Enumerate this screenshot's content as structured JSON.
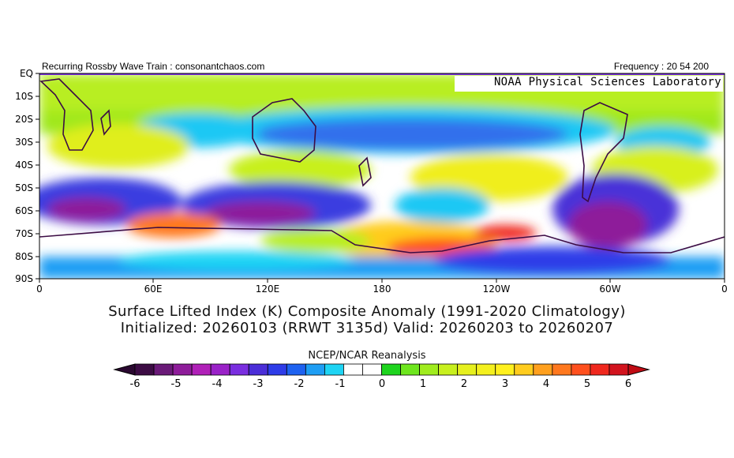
{
  "header": {
    "left_text": "Recurring Rossby Wave Train : consonantchaos.com",
    "right_text": "Frequency : 20 54 200",
    "lab_label": "NOAA Physical Sciences Laboratory"
  },
  "map": {
    "y_ticks": [
      "EQ",
      "10S",
      "20S",
      "30S",
      "40S",
      "50S",
      "60S",
      "70S",
      "80S",
      "90S"
    ],
    "x_ticks": [
      "0",
      "60E",
      "120E",
      "180",
      "120W",
      "60W",
      "0"
    ]
  },
  "title": {
    "line1": "Surface Lifted Index (K) Composite Anomaly (1991-2020 Climatology)",
    "line2": "Initialized: 20260103 (RRWT 3135d) Valid: 20260203 to 20260207"
  },
  "source": "NCEP/NCAR Reanalysis",
  "colorbar": {
    "labels": [
      "-6",
      "-5",
      "-4",
      "-3",
      "-2",
      "-1",
      "0",
      "1",
      "2",
      "3",
      "4",
      "5",
      "6"
    ],
    "colors": [
      "#3c0c44",
      "#6a1a78",
      "#8e1c9a",
      "#b020b8",
      "#9a22c8",
      "#7a2ee0",
      "#4b2ed8",
      "#2e3ce8",
      "#1e62f0",
      "#1e9ef4",
      "#1ed4f4",
      "#ffffff",
      "#ffffff",
      "#1ed41e",
      "#6ee61e",
      "#a0ec1e",
      "#c8f01e",
      "#e6f01e",
      "#f4f01e",
      "#fff01e",
      "#ffcc1e",
      "#ffa01e",
      "#ff781e",
      "#ff501e",
      "#f0281e",
      "#d2141e"
    ],
    "under_color": "#2a0830",
    "over_color": "#c00c14"
  }
}
